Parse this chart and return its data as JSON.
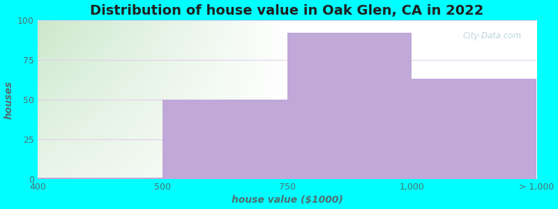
{
  "title": "Distribution of house value in Oak Glen, CA in 2022",
  "xlabel": "house value ($1000)",
  "ylabel": "houses",
  "bar_values": [
    1,
    50,
    92,
    63
  ],
  "bar_color": "#c0a8d8",
  "bar_edgecolor": "#c0a8d8",
  "xtick_labels": [
    "400",
    "500",
    "750",
    "1,000",
    "> 1,000"
  ],
  "ylim": [
    0,
    100
  ],
  "yticks": [
    0,
    25,
    50,
    75,
    100
  ],
  "background_color": "#00FFFF",
  "plot_bg_white": "#ffffff",
  "plot_bg_green_top": "#cce8cc",
  "plot_bg_green_bottom": "#eaf5ea",
  "grid_color": "#e0d0e8",
  "title_fontsize": 14,
  "axis_label_fontsize": 10,
  "tick_fontsize": 9,
  "tick_color": "#507070",
  "watermark_text": "City-Data.com"
}
